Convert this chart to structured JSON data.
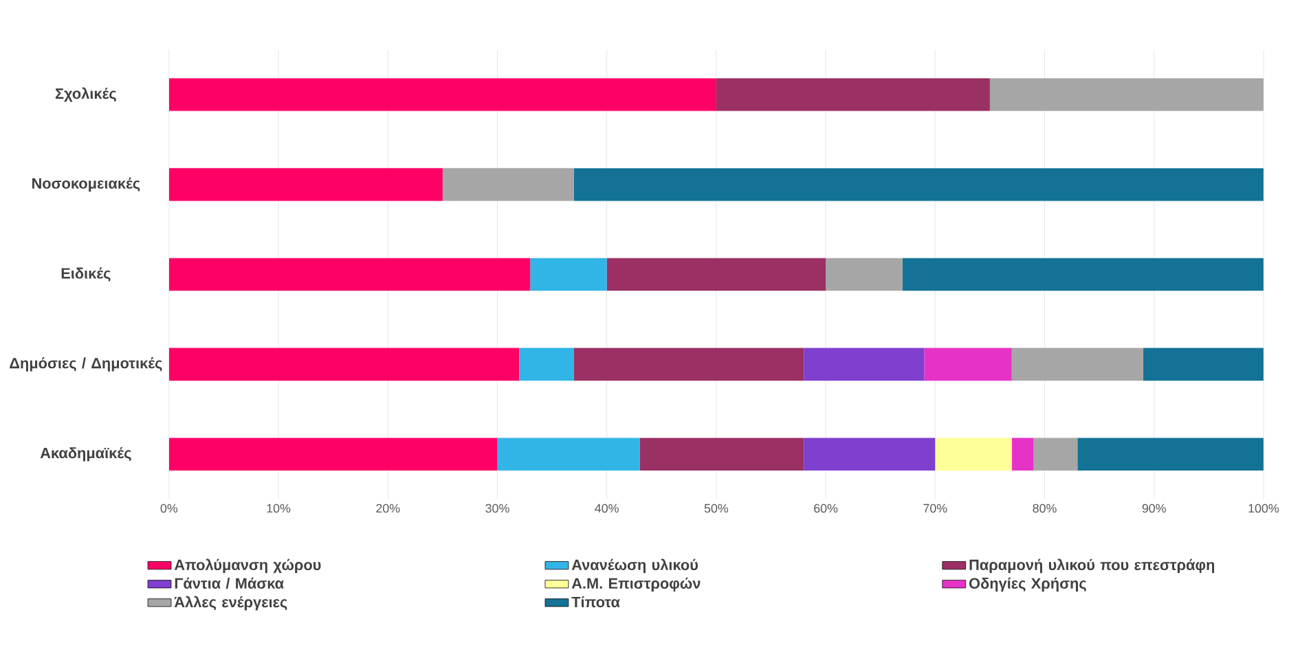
{
  "chart_data": {
    "type": "bar",
    "orientation": "horizontal",
    "stacked": true,
    "grid": "x",
    "legend": "bottom",
    "categories": [
      "Σχολικές",
      "Νοσοκομειακές",
      "Ειδικές",
      "Δημόσιες / Δημοτικές",
      "Ακαδημαϊκές"
    ],
    "xlim": [
      0,
      100
    ],
    "xticks": [
      {
        "value": 0,
        "label": "0%"
      },
      {
        "value": 10,
        "label": "10%"
      },
      {
        "value": 20,
        "label": "20%"
      },
      {
        "value": 30,
        "label": "30%"
      },
      {
        "value": 40,
        "label": "40%"
      },
      {
        "value": 50,
        "label": "50%"
      },
      {
        "value": 60,
        "label": "60%"
      },
      {
        "value": 70,
        "label": "70%"
      },
      {
        "value": 80,
        "label": "80%"
      },
      {
        "value": 90,
        "label": "90%"
      },
      {
        "value": 100,
        "label": "100%"
      }
    ],
    "series": [
      {
        "name": "Απολύμανση χώρου",
        "color": "#ff0066",
        "values": [
          50,
          25,
          33,
          32,
          30
        ]
      },
      {
        "name": "Ανανέωση υλικού",
        "color": "#31b5e6",
        "values": [
          0,
          0,
          7,
          5,
          13
        ]
      },
      {
        "name": "Παραμονή υλικού που επεστράφη",
        "color": "#9b3064",
        "values": [
          25,
          0,
          20,
          21,
          15
        ]
      },
      {
        "name": "Γάντια / Μάσκα",
        "color": "#7f3fcf",
        "values": [
          0,
          0,
          0,
          11,
          12
        ]
      },
      {
        "name": "Α.Μ. Επιστροφών",
        "color": "#ffff99",
        "values": [
          0,
          0,
          0,
          0,
          7
        ]
      },
      {
        "name": "Οδηγίες Χρήσης",
        "color": "#e732c8",
        "values": [
          0,
          0,
          0,
          8,
          2
        ]
      },
      {
        "name": "Άλλες ενέργειες",
        "color": "#a6a6a6",
        "values": [
          25,
          12,
          7,
          12,
          4
        ]
      },
      {
        "name": "Τίποτα",
        "color": "#137296",
        "values": [
          0,
          63,
          33,
          11,
          17
        ]
      }
    ]
  }
}
